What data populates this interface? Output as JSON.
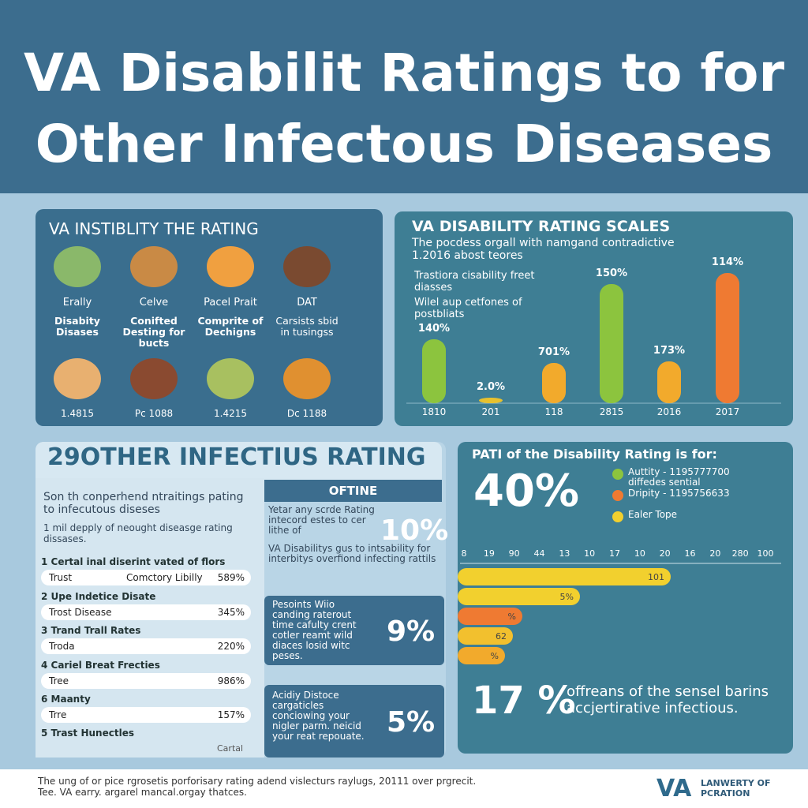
{
  "header": {
    "title_lines": [
      "VA Disabilit Ratings to for",
      "Other Infectous Diseases"
    ]
  },
  "panel1": {
    "heading": "VA INSTIBLITY THE RATING",
    "items": [
      {
        "label": "Erally",
        "caption": "Disabity Disases",
        "code": "1.4815"
      },
      {
        "label": "Celve",
        "caption": "Conifted Desting for bucts",
        "code": "Pc 1088"
      },
      {
        "label": "Pacel Prait",
        "caption": "Comprite of Dechigns",
        "code": "1.4215"
      },
      {
        "label": "DAT",
        "caption": "Carsists sbid in tusingss",
        "code": "Dc 1188"
      }
    ]
  },
  "panel2": {
    "heading": "VA DISABILITY RATING SCALES",
    "subtitle": "The pocdess orgall with namgand contradictive 1.2016 abost teores",
    "bullets": [
      "Trastiora cisability freet diasses",
      "Wilel aup cetfones of postbliats"
    ],
    "bars": [
      {
        "label": "140%",
        "year": "1810"
      },
      {
        "label": "2.0%",
        "year": "201"
      },
      {
        "label": "701%",
        "year": "118"
      },
      {
        "label": "150%",
        "year": "2815"
      },
      {
        "label": "173%",
        "year": "2016"
      },
      {
        "label": "114%",
        "year": "2017"
      }
    ]
  },
  "panel3": {
    "heading": "29OTHER INFECTIUS RATING",
    "bullets": [
      "Son th conperhend ntraitings pating to infecutous diseses",
      "1 mil depply of neought diseasge rating dissases."
    ],
    "list": [
      {
        "title": "1 Certal inal diserint vated of flors",
        "name": "Trust",
        "mid": "Comctory Libilly",
        "value": "589%"
      },
      {
        "title": "2 Upe Indetice Disate",
        "name": "Trost Disease",
        "value": "345%"
      },
      {
        "title": "3 Trand Trall Rates",
        "name": "Troda",
        "value": "220%"
      },
      {
        "title": "4 Cariel Breat Frecties",
        "name": "Tree",
        "value": "986%"
      },
      {
        "title": "6 Maanty",
        "name": "Trre",
        "value": "157%"
      }
    ],
    "list_tail": "5 Trast Hunectles",
    "footnote": "Cartal",
    "side_heading": "OFTINE",
    "side_bullets": [
      "Yetar any scrde Rating intecord estes to cer lithe of",
      "VA Disabilitys gus to intsability for interbitys overfiond infecting rattils"
    ],
    "side_stat": "10%",
    "boxes": [
      {
        "text": "Pesoints Wiio canding raterout time cafulty crent cotler reamt wild diaces losid witc peses.",
        "stat": "9%"
      },
      {
        "text": "Acidiy Distoce cargaticles conciowing your nigler parm. neicid your reat repouate.",
        "stat": "5%"
      }
    ]
  },
  "panel4": {
    "heading": "PATI of the Disability Rating is for:",
    "stat": "40%",
    "legend": [
      "Auttity - 1195777700 diffedes sential",
      "Dripity - 1195756633",
      "Ealer Tope"
    ],
    "ticks": [
      "8",
      "19",
      "90",
      "44",
      "13",
      "10",
      "17",
      "10",
      "20",
      "16",
      "20",
      "280",
      "100"
    ],
    "bar_labels": [
      "101",
      "5%",
      "%",
      "62",
      "%"
    ],
    "bottom_stat": "17 %",
    "bottom_text": "offreans of the sensel barins accjertirative infectious."
  },
  "footer": {
    "text": "The ung of or pice rgrosetis porforisary rating adend vislecturs raylugs, 20111 over prgrecit. Tee. VA earry. argarel mancal.orgay thatces.",
    "logo": "VA",
    "org": "LANWERTY OF PCRATION"
  }
}
